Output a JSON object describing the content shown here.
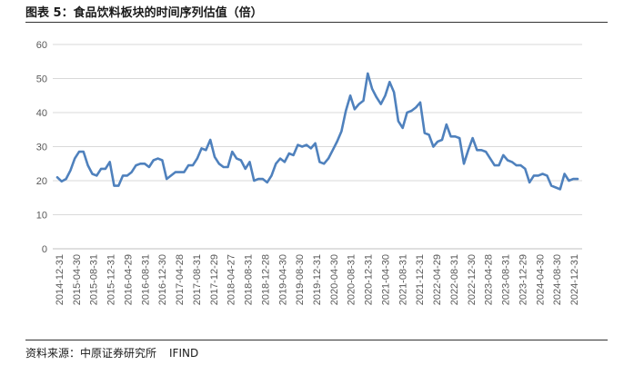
{
  "header": {
    "title": "图表 5：食品饮料板块的时间序列估值（倍）"
  },
  "footer": {
    "source_label": "资料来源：中原证券研究所",
    "source_name": "IFIND"
  },
  "chart_data": {
    "type": "line",
    "title": "图表 5：食品饮料板块的时间序列估值（倍）",
    "xlabel": "",
    "ylabel": "",
    "ylim": [
      0,
      60
    ],
    "yticks": [
      0,
      10,
      20,
      30,
      40,
      50,
      60
    ],
    "grid": true,
    "legend": "none",
    "line_color": "#4F81BD",
    "xticks": [
      "2014-12-31",
      "2015-04-30",
      "2015-08-31",
      "2015-12-31",
      "2016-04-29",
      "2016-08-31",
      "2016-12-30",
      "2017-04-28",
      "2017-08-31",
      "2017-12-29",
      "2018-04-27",
      "2018-08-31",
      "2018-12-28",
      "2019-04-30",
      "2019-08-30",
      "2019-12-31",
      "2020-04-30",
      "2020-08-31",
      "2020-12-31",
      "2021-04-30",
      "2021-08-31",
      "2021-12-31",
      "2022-04-29",
      "2022-08-31",
      "2022-12-30",
      "2023-04-28",
      "2023-08-31",
      "2023-12-29",
      "2024-04-30",
      "2024-08-30",
      "2024-12-31"
    ],
    "series": [
      {
        "values": [
          21,
          19.8,
          20.5,
          23,
          26.5,
          28.5,
          28.5,
          24.5,
          22,
          21.5,
          23.5,
          23.5,
          25.5,
          18.5,
          18.5,
          21.5,
          21.5,
          22.5,
          24.5,
          25,
          25,
          24,
          26,
          26.5,
          26,
          20.5,
          21.5,
          22.5,
          22.5,
          22.5,
          24.5,
          24.5,
          26.5,
          29.5,
          29,
          32,
          27,
          25,
          24,
          24,
          28.5,
          26.5,
          26,
          23.5,
          25.5,
          20,
          20.5,
          20.5,
          19.5,
          21.5,
          25,
          26.5,
          25.5,
          28,
          27.5,
          30.5,
          30,
          30.5,
          29.5,
          31,
          25.5,
          25,
          26.5,
          29,
          31.5,
          34.5,
          40.5,
          45,
          41,
          42.5,
          43.5,
          51.5,
          47,
          44.5,
          42.5,
          45,
          49,
          46,
          37.5,
          35.5,
          40,
          40.5,
          41.5,
          43,
          34,
          33.5,
          30,
          31.5,
          32,
          36.5,
          33,
          33,
          32.5,
          25,
          29,
          32.5,
          29,
          29,
          28.5,
          26.5,
          24.5,
          24.5,
          27.5,
          26,
          25.5,
          24.5,
          24.5,
          23.5,
          19.5,
          21.5,
          21.5,
          22,
          21.5,
          18.5,
          18,
          17.5,
          22,
          20,
          20.5,
          20.5
        ]
      }
    ]
  }
}
